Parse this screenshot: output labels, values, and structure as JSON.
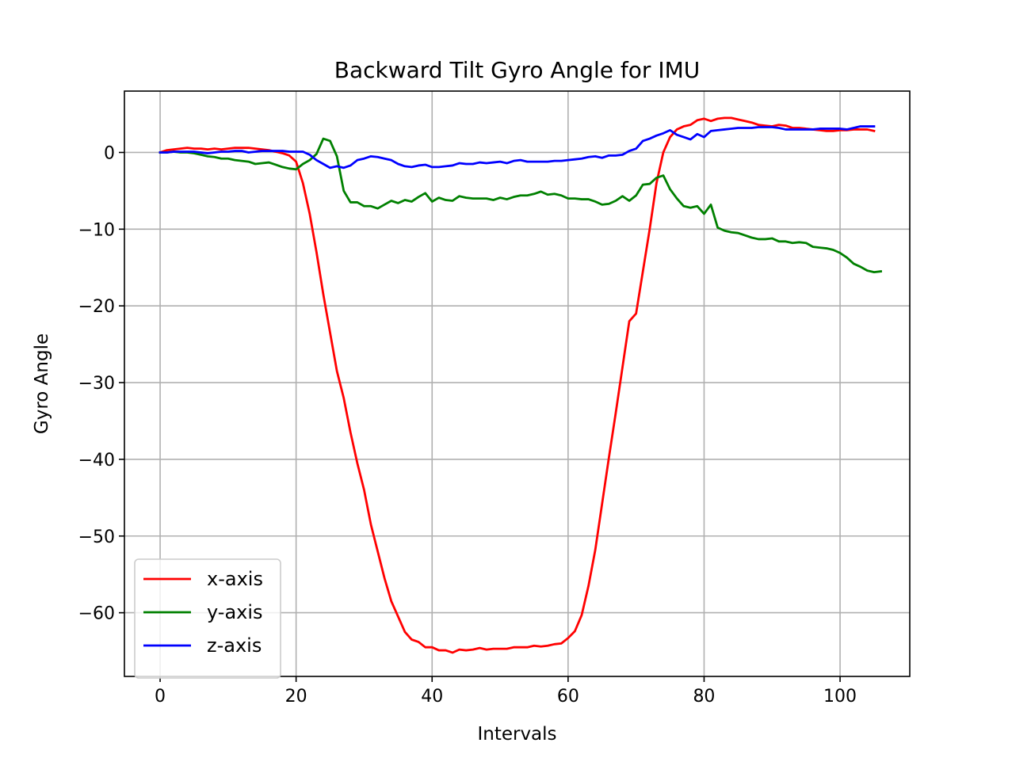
{
  "chart_data": {
    "type": "line",
    "title": "Backward Tilt Gyro Angle for IMU",
    "xlabel": "Intervals",
    "ylabel": "Gyro Angle",
    "xlim": [
      -5.25,
      110.25
    ],
    "ylim": [
      -68.3,
      8.0
    ],
    "xticks": [
      0,
      20,
      40,
      60,
      80,
      100
    ],
    "yticks": [
      0,
      -10,
      -20,
      -30,
      -40,
      -50,
      -60
    ],
    "xtick_labels": [
      "0",
      "20",
      "40",
      "60",
      "80",
      "100"
    ],
    "ytick_labels": [
      "0",
      "−10",
      "−20",
      "−30",
      "−40",
      "−50",
      "−60"
    ],
    "grid": true,
    "legend_position": "lower-left",
    "series": [
      {
        "name": "x-axis",
        "color": "#ff0000",
        "values": [
          0.0,
          0.3,
          0.4,
          0.5,
          0.6,
          0.5,
          0.5,
          0.4,
          0.5,
          0.4,
          0.5,
          0.6,
          0.6,
          0.6,
          0.5,
          0.4,
          0.3,
          0.1,
          -0.1,
          -0.4,
          -1.2,
          -4.0,
          -8.0,
          -13.0,
          -18.5,
          -23.5,
          -28.5,
          -32.0,
          -36.5,
          -40.5,
          -44.0,
          -48.5,
          -52.0,
          -55.5,
          -58.5,
          -60.5,
          -62.5,
          -63.5,
          -63.8,
          -64.5,
          -64.5,
          -64.9,
          -64.9,
          -65.2,
          -64.8,
          -64.9,
          -64.8,
          -64.6,
          -64.8,
          -64.7,
          -64.7,
          -64.7,
          -64.5,
          -64.5,
          -64.5,
          -64.3,
          -64.4,
          -64.3,
          -64.1,
          -64.0,
          -63.3,
          -62.4,
          -60.3,
          -56.5,
          -51.8,
          -45.8,
          -39.8,
          -34.0,
          -28.0,
          -22.0,
          -21.0,
          -15.5,
          -10.0,
          -4.0,
          0.0,
          2.0,
          3.0,
          3.4,
          3.6,
          4.2,
          4.4,
          4.1,
          4.4,
          4.5,
          4.5,
          4.3,
          4.1,
          3.9,
          3.6,
          3.5,
          3.4,
          3.6,
          3.5,
          3.2,
          3.2,
          3.1,
          3.0,
          2.9,
          2.8,
          2.8,
          2.9,
          2.9,
          3.0,
          3.0,
          3.0,
          2.8
        ]
      },
      {
        "name": "y-axis",
        "color": "#008000",
        "values": [
          0.0,
          0.0,
          0.1,
          0.0,
          0.0,
          -0.1,
          -0.3,
          -0.5,
          -0.6,
          -0.8,
          -0.8,
          -1.0,
          -1.1,
          -1.2,
          -1.5,
          -1.4,
          -1.3,
          -1.6,
          -1.9,
          -2.1,
          -2.2,
          -1.5,
          -1.0,
          -0.2,
          1.8,
          1.5,
          -0.5,
          -5.0,
          -6.5,
          -6.5,
          -7.0,
          -7.0,
          -7.3,
          -6.8,
          -6.3,
          -6.6,
          -6.2,
          -6.4,
          -5.8,
          -5.3,
          -6.4,
          -5.9,
          -6.2,
          -6.3,
          -5.7,
          -5.9,
          -6.0,
          -6.0,
          -6.0,
          -6.2,
          -5.9,
          -6.1,
          -5.8,
          -5.6,
          -5.6,
          -5.4,
          -5.1,
          -5.5,
          -5.4,
          -5.6,
          -6.0,
          -6.0,
          -6.1,
          -6.1,
          -6.4,
          -6.8,
          -6.7,
          -6.3,
          -5.7,
          -6.3,
          -5.6,
          -4.2,
          -4.1,
          -3.3,
          -3.0,
          -4.8,
          -6.0,
          -7.0,
          -7.2,
          -7.0,
          -8.0,
          -6.8,
          -9.8,
          -10.2,
          -10.4,
          -10.5,
          -10.8,
          -11.1,
          -11.3,
          -11.3,
          -11.2,
          -11.6,
          -11.6,
          -11.8,
          -11.7,
          -11.8,
          -12.3,
          -12.4,
          -12.5,
          -12.7,
          -13.1,
          -13.7,
          -14.5,
          -14.9,
          -15.4,
          -15.6,
          -15.5
        ]
      },
      {
        "name": "z-axis",
        "color": "#0000ff",
        "values": [
          0.0,
          0.0,
          0.1,
          0.1,
          0.1,
          0.1,
          0.0,
          -0.1,
          0.0,
          0.1,
          0.1,
          0.2,
          0.2,
          0.0,
          0.1,
          0.2,
          0.2,
          0.2,
          0.2,
          0.1,
          0.1,
          0.1,
          -0.3,
          -1.0,
          -1.5,
          -2.0,
          -1.8,
          -2.0,
          -1.7,
          -1.0,
          -0.8,
          -0.5,
          -0.6,
          -0.8,
          -1.0,
          -1.5,
          -1.8,
          -1.9,
          -1.7,
          -1.6,
          -1.9,
          -1.9,
          -1.8,
          -1.7,
          -1.4,
          -1.5,
          -1.5,
          -1.3,
          -1.4,
          -1.3,
          -1.2,
          -1.4,
          -1.1,
          -1.0,
          -1.2,
          -1.2,
          -1.2,
          -1.2,
          -1.1,
          -1.1,
          -1.0,
          -0.9,
          -0.8,
          -0.6,
          -0.5,
          -0.7,
          -0.4,
          -0.4,
          -0.3,
          0.2,
          0.5,
          1.5,
          1.8,
          2.2,
          2.5,
          2.9,
          2.3,
          2.0,
          1.7,
          2.4,
          2.0,
          2.8,
          2.9,
          3.0,
          3.1,
          3.2,
          3.2,
          3.2,
          3.3,
          3.3,
          3.3,
          3.2,
          3.0,
          3.0,
          3.0,
          3.0,
          3.0,
          3.1,
          3.1,
          3.1,
          3.1,
          3.0,
          3.2,
          3.4,
          3.4,
          3.4
        ]
      }
    ]
  }
}
